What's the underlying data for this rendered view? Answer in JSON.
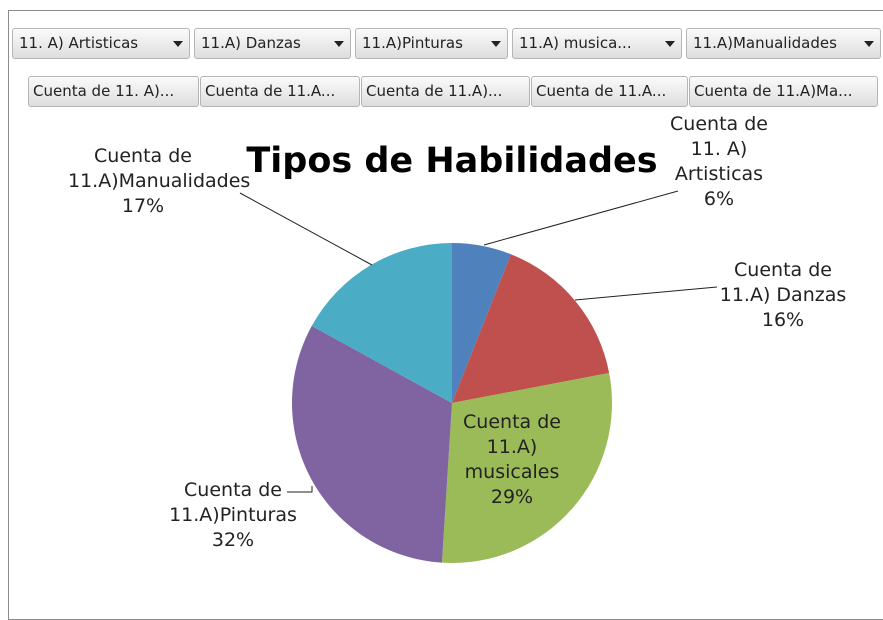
{
  "filter_buttons": [
    "11. A) Artisticas",
    "11.A) Danzas",
    "11.A)Pinturas",
    "11.A) musica...",
    "11.A)Manualidades"
  ],
  "value_buttons": [
    "Cuenta de 11. A)...",
    "Cuenta de 11.A...",
    "Cuenta de 11.A)...",
    "Cuenta de 11.A...",
    "Cuenta de 11.A)Ma..."
  ],
  "chart_data": {
    "type": "pie",
    "title": "Tipos de Habilidades",
    "categories": [
      "Cuenta de 11. A) Artisticas",
      "Cuenta de 11.A) Danzas",
      "Cuenta de 11.A) musicales",
      "Cuenta de 11.A)Pinturas",
      "Cuenta de 11.A)Manualidades"
    ],
    "values": [
      6,
      16,
      29,
      32,
      17
    ],
    "value_labels": [
      "6%",
      "16%",
      "29%",
      "32%",
      "17%"
    ],
    "colors": [
      "#4f81bd",
      "#c0504d",
      "#9bbb59",
      "#8064a2",
      "#4bacc6"
    ]
  }
}
